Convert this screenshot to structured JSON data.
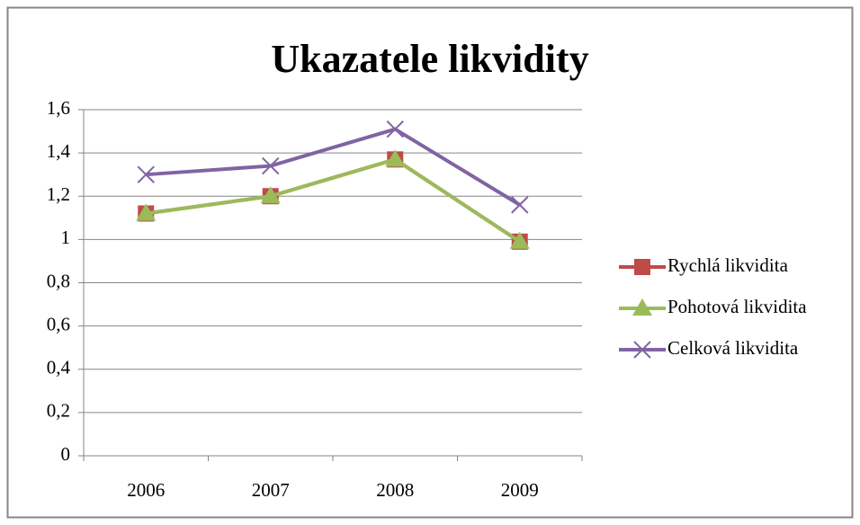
{
  "chart_data": {
    "type": "line",
    "title": "Ukazatele likvidity",
    "categories": [
      "2006",
      "2007",
      "2008",
      "2009"
    ],
    "series": [
      {
        "name": "Rychlá likvidita",
        "color": "#be4b48",
        "marker": "square",
        "values": [
          1.12,
          1.2,
          1.37,
          0.99
        ]
      },
      {
        "name": "Pohotová likvidita",
        "color": "#9bbb59",
        "marker": "triangle",
        "values": [
          1.12,
          1.2,
          1.37,
          0.99
        ]
      },
      {
        "name": "Celková likvidita",
        "color": "#8064a2",
        "marker": "x",
        "values": [
          1.3,
          1.34,
          1.51,
          1.16
        ]
      }
    ],
    "ylim": [
      0,
      1.6
    ],
    "yticks": [
      0,
      {
        "value": 0.2,
        "label": "0,2"
      },
      {
        "value": 0.4,
        "label": "0,4"
      },
      {
        "value": 0.6,
        "label": "0,6"
      },
      {
        "value": 0.8,
        "label": "0,8"
      },
      1,
      {
        "value": 1.2,
        "label": "1,2"
      },
      {
        "value": 1.4,
        "label": "1,4"
      },
      {
        "value": 1.6,
        "label": "1,6"
      }
    ],
    "grid": true,
    "legend": "right"
  }
}
